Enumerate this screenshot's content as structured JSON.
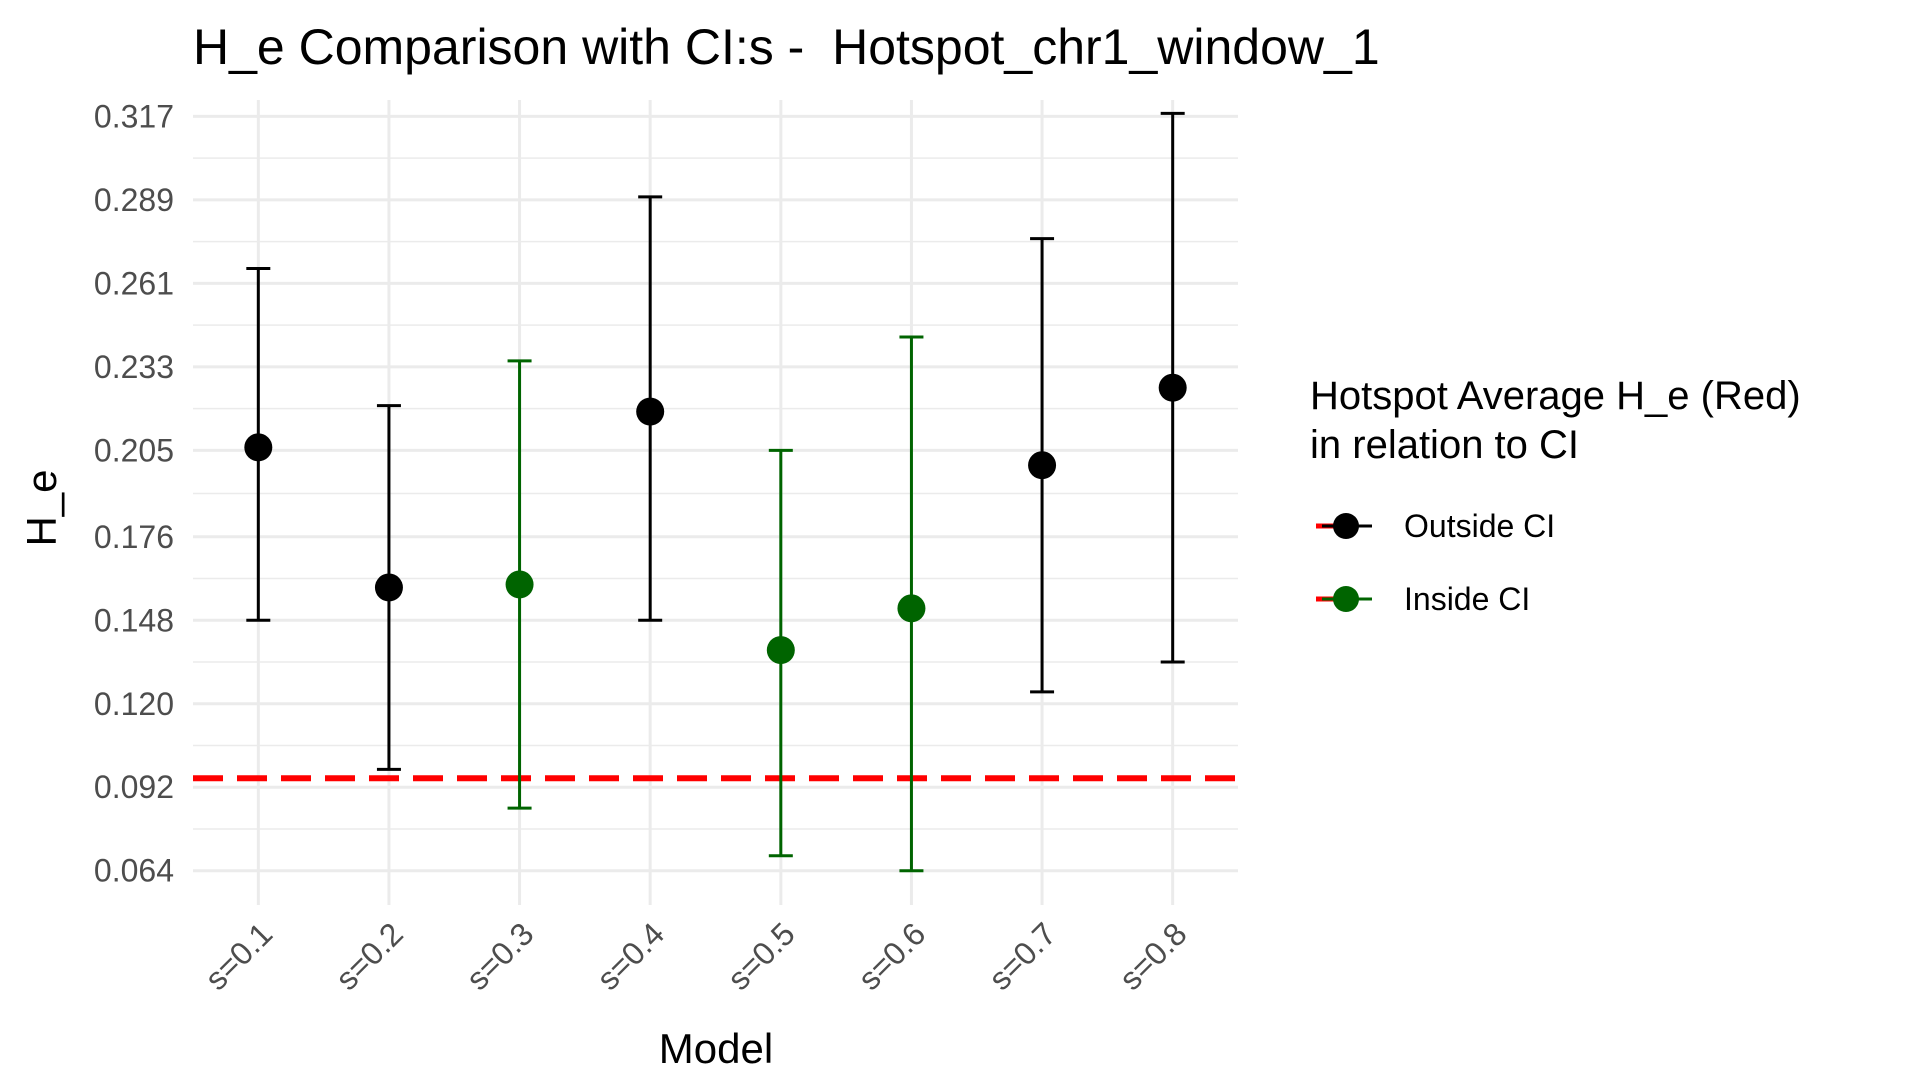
{
  "chart_data": {
    "type": "scatter",
    "title": "H_e Comparison with CI:s -  Hotspot_chr1_window_1",
    "xlabel": "Model",
    "ylabel": "H_e",
    "categories": [
      "s=0.1",
      "s=0.2",
      "s=0.3",
      "s=0.4",
      "s=0.5",
      "s=0.6",
      "s=0.7",
      "s=0.8"
    ],
    "y_ticks": [
      "0.064",
      "0.092",
      "0.120",
      "0.148",
      "0.176",
      "0.205",
      "0.233",
      "0.261",
      "0.289",
      "0.317"
    ],
    "ylim": [
      0.0525,
      0.3225
    ],
    "grid": true,
    "points": [
      {
        "category": "s=0.1",
        "value": 0.206,
        "ci_low": 0.148,
        "ci_high": 0.266,
        "status": "Outside CI"
      },
      {
        "category": "s=0.2",
        "value": 0.159,
        "ci_low": 0.098,
        "ci_high": 0.22,
        "status": "Outside CI"
      },
      {
        "category": "s=0.3",
        "value": 0.16,
        "ci_low": 0.085,
        "ci_high": 0.235,
        "status": "Inside CI"
      },
      {
        "category": "s=0.4",
        "value": 0.218,
        "ci_low": 0.148,
        "ci_high": 0.29,
        "status": "Outside CI"
      },
      {
        "category": "s=0.5",
        "value": 0.138,
        "ci_low": 0.069,
        "ci_high": 0.205,
        "status": "Inside CI"
      },
      {
        "category": "s=0.6",
        "value": 0.152,
        "ci_low": 0.064,
        "ci_high": 0.243,
        "status": "Inside CI"
      },
      {
        "category": "s=0.7",
        "value": 0.2,
        "ci_low": 0.124,
        "ci_high": 0.276,
        "status": "Outside CI"
      },
      {
        "category": "s=0.8",
        "value": 0.226,
        "ci_low": 0.134,
        "ci_high": 0.318,
        "status": "Outside CI"
      }
    ],
    "reference_line": {
      "value": 0.095,
      "color": "#ff0000",
      "style": "dashed"
    },
    "legend": {
      "title": "Hotspot Average H_e (Red) in relation to CI",
      "title_lines": [
        "Hotspot Average H_e (Red)",
        "in relation to CI"
      ],
      "placement": "right",
      "entries": [
        {
          "label": "Outside CI",
          "color": "#000000"
        },
        {
          "label": "Inside CI",
          "color": "#006400"
        }
      ]
    },
    "colors": {
      "Outside CI": "#000000",
      "Inside CI": "#006400",
      "reference": "#ff0000",
      "grid": "#ebebeb"
    }
  }
}
